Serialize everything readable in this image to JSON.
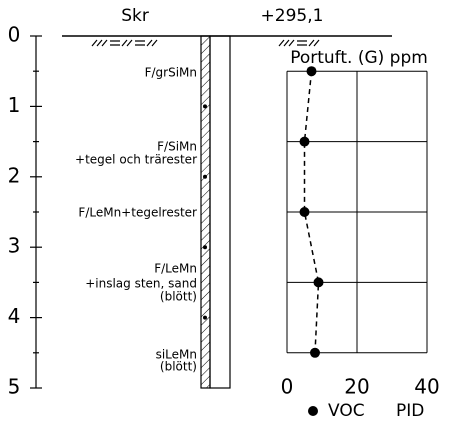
{
  "header": {
    "left": "Skr",
    "right": "+295,1"
  },
  "soil_layers": [
    {
      "lines": [
        "F/grSiMn"
      ]
    },
    {
      "lines": [
        "F/SiMn",
        "+tegel och trärester"
      ]
    },
    {
      "lines": [
        "F/LeMn+tegelrester"
      ]
    },
    {
      "lines": [
        "F/LeMn",
        "+inslag sten, sand",
        "(blött)"
      ]
    },
    {
      "lines": [
        "siLeMn",
        "(blött)"
      ]
    }
  ],
  "chart_data": {
    "type": "profile",
    "title": "Portuft. (G) ppm",
    "depth_axis": {
      "ylim": [
        0,
        5
      ],
      "yticks": [
        0,
        1,
        2,
        3,
        4,
        5
      ]
    },
    "xlim": [
      0,
      40
    ],
    "xticks": [
      0,
      20,
      40
    ],
    "series": [
      {
        "name": "VOC",
        "color": "#000000",
        "depths": [
          0.5,
          1.5,
          2.5,
          3.5,
          4.5
        ],
        "values": [
          7,
          5,
          5,
          9,
          8
        ]
      }
    ],
    "method": "PID"
  }
}
